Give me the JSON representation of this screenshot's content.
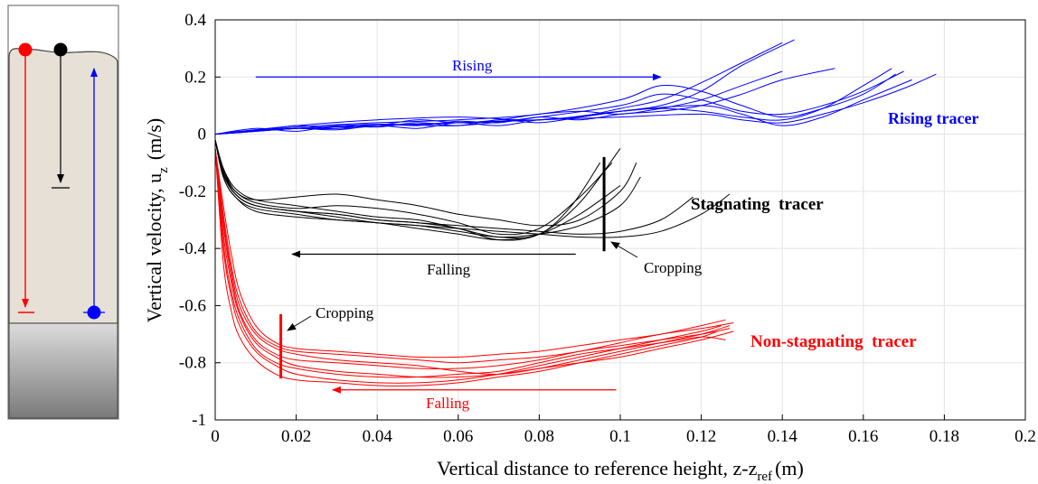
{
  "schematic": {
    "tracer_colors": [
      "#ff0000",
      "#000000",
      "#0000ff"
    ],
    "description_visible": false
  },
  "chart_data": {
    "type": "line",
    "title": "",
    "xlabel": "Vertical distance to reference height, z-z",
    "xlabel_sub": "ref",
    "xlabel_unit": "(m)",
    "ylabel": "Vertical velocity, u",
    "ylabel_sub": "z",
    "ylabel_unit": "(m/s)",
    "xlim": [
      0,
      0.2
    ],
    "ylim": [
      -1,
      0.4
    ],
    "grid": true,
    "x_ticks": [
      "0",
      "0.02",
      "0.04",
      "0.06",
      "0.08",
      "0.1",
      "0.12",
      "0.14",
      "0.16",
      "0.18",
      "0.2"
    ],
    "y_ticks": [
      "0.4",
      "0.2",
      "0",
      "-0.2",
      "-0.4",
      "-0.6",
      "-0.8",
      "-1"
    ],
    "series": [
      {
        "group": "rising",
        "color": "#0000ff",
        "x": [
          0,
          0.01,
          0.02,
          0.03,
          0.04,
          0.05,
          0.06,
          0.07,
          0.08,
          0.09,
          0.1,
          0.11,
          0.12,
          0.13,
          0.143
        ],
        "y": [
          0,
          0.01,
          0.02,
          0.015,
          0.03,
          0.02,
          0.04,
          0.03,
          0.05,
          0.06,
          0.08,
          0.1,
          0.15,
          0.24,
          0.33
        ]
      },
      {
        "group": "rising",
        "color": "#0000ff",
        "x": [
          0,
          0.01,
          0.02,
          0.03,
          0.04,
          0.05,
          0.06,
          0.07,
          0.08,
          0.09,
          0.1,
          0.11,
          0.12,
          0.13,
          0.14
        ],
        "y": [
          0,
          0.02,
          0.01,
          0.03,
          0.025,
          0.04,
          0.03,
          0.05,
          0.04,
          0.06,
          0.09,
          0.12,
          0.18,
          0.25,
          0.32
        ]
      },
      {
        "group": "rising",
        "color": "#0000ff",
        "x": [
          0,
          0.01,
          0.02,
          0.03,
          0.04,
          0.05,
          0.06,
          0.07,
          0.08,
          0.09,
          0.1,
          0.11,
          0.12,
          0.13,
          0.14,
          0.153
        ],
        "y": [
          0,
          0.015,
          0.02,
          0.02,
          0.035,
          0.03,
          0.045,
          0.04,
          0.06,
          0.05,
          0.07,
          0.08,
          0.1,
          0.14,
          0.19,
          0.23
        ]
      },
      {
        "group": "rising",
        "color": "#0000ff",
        "x": [
          0,
          0.01,
          0.02,
          0.03,
          0.04,
          0.05,
          0.06,
          0.07,
          0.08,
          0.09,
          0.1,
          0.11,
          0.12,
          0.13,
          0.14
        ],
        "y": [
          0,
          0.01,
          0.03,
          0.02,
          0.03,
          0.05,
          0.04,
          0.05,
          0.07,
          0.08,
          0.07,
          0.09,
          0.12,
          0.17,
          0.22
        ]
      },
      {
        "group": "rising",
        "color": "#0000ff",
        "x": [
          0,
          0.02,
          0.04,
          0.06,
          0.08,
          0.09,
          0.1,
          0.11,
          0.12,
          0.13,
          0.14,
          0.15,
          0.16,
          0.167
        ],
        "y": [
          0,
          0.02,
          0.03,
          0.04,
          0.05,
          0.06,
          0.08,
          0.09,
          0.08,
          0.06,
          0.05,
          0.09,
          0.17,
          0.23
        ]
      },
      {
        "group": "rising",
        "color": "#0000ff",
        "x": [
          0,
          0.02,
          0.04,
          0.06,
          0.08,
          0.1,
          0.11,
          0.12,
          0.13,
          0.14,
          0.15,
          0.16,
          0.17
        ],
        "y": [
          0,
          0.02,
          0.035,
          0.03,
          0.06,
          0.1,
          0.14,
          0.12,
          0.08,
          0.07,
          0.1,
          0.15,
          0.22
        ]
      },
      {
        "group": "rising",
        "color": "#0000ff",
        "x": [
          0,
          0.02,
          0.04,
          0.06,
          0.08,
          0.1,
          0.11,
          0.12,
          0.13,
          0.14,
          0.15,
          0.16,
          0.168
        ],
        "y": [
          0,
          0.025,
          0.04,
          0.05,
          0.07,
          0.12,
          0.17,
          0.15,
          0.1,
          0.06,
          0.09,
          0.14,
          0.21
        ]
      },
      {
        "group": "rising",
        "color": "#0000ff",
        "x": [
          0,
          0.02,
          0.04,
          0.06,
          0.08,
          0.1,
          0.12,
          0.13,
          0.14,
          0.15,
          0.16,
          0.17,
          0.178
        ],
        "y": [
          0,
          0.02,
          0.03,
          0.04,
          0.05,
          0.06,
          0.07,
          0.05,
          0.04,
          0.07,
          0.11,
          0.16,
          0.21
        ]
      },
      {
        "group": "rising",
        "color": "#0000ff",
        "x": [
          0,
          0.02,
          0.04,
          0.06,
          0.08,
          0.1,
          0.12,
          0.13,
          0.14,
          0.15,
          0.16,
          0.172
        ],
        "y": [
          0,
          0.03,
          0.05,
          0.06,
          0.05,
          0.08,
          0.1,
          0.07,
          0.03,
          0.06,
          0.12,
          0.19
        ]
      },
      {
        "group": "stagnating",
        "color": "#000000",
        "x": [
          0,
          0.002,
          0.005,
          0.01,
          0.02,
          0.03,
          0.04,
          0.05,
          0.06,
          0.07,
          0.08,
          0.088,
          0.095
        ],
        "y": [
          -0.02,
          -0.12,
          -0.19,
          -0.23,
          -0.25,
          -0.27,
          -0.29,
          -0.3,
          -0.33,
          -0.36,
          -0.35,
          -0.25,
          -0.1
        ]
      },
      {
        "group": "stagnating",
        "color": "#000000",
        "x": [
          0,
          0.002,
          0.005,
          0.01,
          0.02,
          0.03,
          0.04,
          0.05,
          0.06,
          0.07,
          0.08,
          0.09,
          0.1
        ],
        "y": [
          -0.02,
          -0.14,
          -0.21,
          -0.25,
          -0.27,
          -0.28,
          -0.3,
          -0.31,
          -0.33,
          -0.37,
          -0.35,
          -0.24,
          -0.05
        ]
      },
      {
        "group": "stagnating",
        "color": "#000000",
        "x": [
          0,
          0.002,
          0.005,
          0.01,
          0.02,
          0.03,
          0.04,
          0.05,
          0.06,
          0.07,
          0.08,
          0.09,
          0.098
        ],
        "y": [
          -0.02,
          -0.13,
          -0.2,
          -0.24,
          -0.26,
          -0.25,
          -0.26,
          -0.28,
          -0.31,
          -0.35,
          -0.33,
          -0.22,
          -0.1
        ]
      },
      {
        "group": "stagnating",
        "color": "#000000",
        "x": [
          0,
          0.002,
          0.005,
          0.01,
          0.02,
          0.03,
          0.04,
          0.05,
          0.06,
          0.07,
          0.08,
          0.09,
          0.1
        ],
        "y": [
          -0.02,
          -0.15,
          -0.22,
          -0.26,
          -0.28,
          -0.3,
          -0.31,
          -0.33,
          -0.35,
          -0.37,
          -0.35,
          -0.28,
          -0.18
        ]
      },
      {
        "group": "stagnating",
        "color": "#000000",
        "x": [
          0,
          0.002,
          0.005,
          0.01,
          0.02,
          0.03,
          0.04,
          0.05,
          0.06,
          0.07,
          0.08,
          0.09,
          0.1,
          0.104
        ],
        "y": [
          -0.02,
          -0.12,
          -0.2,
          -0.23,
          -0.22,
          -0.21,
          -0.23,
          -0.25,
          -0.28,
          -0.3,
          -0.32,
          -0.3,
          -0.2,
          -0.1
        ]
      },
      {
        "group": "stagnating",
        "color": "#000000",
        "x": [
          0,
          0.002,
          0.005,
          0.01,
          0.02,
          0.03,
          0.04,
          0.05,
          0.06,
          0.07,
          0.08,
          0.09,
          0.1,
          0.11,
          0.118
        ],
        "y": [
          -0.02,
          -0.14,
          -0.21,
          -0.25,
          -0.27,
          -0.28,
          -0.3,
          -0.31,
          -0.32,
          -0.33,
          -0.34,
          -0.35,
          -0.34,
          -0.3,
          -0.22
        ]
      },
      {
        "group": "stagnating",
        "color": "#000000",
        "x": [
          0,
          0.002,
          0.005,
          0.01,
          0.02,
          0.03,
          0.04,
          0.05,
          0.06,
          0.07,
          0.08,
          0.09,
          0.1,
          0.11,
          0.12,
          0.127
        ],
        "y": [
          -0.02,
          -0.15,
          -0.22,
          -0.27,
          -0.29,
          -0.3,
          -0.31,
          -0.32,
          -0.33,
          -0.34,
          -0.35,
          -0.36,
          -0.36,
          -0.34,
          -0.28,
          -0.21
        ]
      },
      {
        "group": "stagnating",
        "color": "#000000",
        "x": [
          0,
          0.002,
          0.005,
          0.01,
          0.02,
          0.03,
          0.04,
          0.05,
          0.06,
          0.07,
          0.08,
          0.09,
          0.1,
          0.105
        ],
        "y": [
          -0.02,
          -0.13,
          -0.21,
          -0.25,
          -0.27,
          -0.29,
          -0.31,
          -0.32,
          -0.34,
          -0.36,
          -0.35,
          -0.32,
          -0.25,
          -0.15
        ]
      },
      {
        "group": "non-stagnating",
        "color": "#ff0000",
        "x": [
          0,
          0.002,
          0.004,
          0.006,
          0.01,
          0.015,
          0.02,
          0.03,
          0.04,
          0.05,
          0.06,
          0.07,
          0.08,
          0.09,
          0.1,
          0.11,
          0.12,
          0.127
        ],
        "y": [
          -0.05,
          -0.3,
          -0.48,
          -0.6,
          -0.7,
          -0.75,
          -0.77,
          -0.79,
          -0.8,
          -0.81,
          -0.83,
          -0.84,
          -0.82,
          -0.79,
          -0.76,
          -0.73,
          -0.7,
          -0.67
        ]
      },
      {
        "group": "non-stagnating",
        "color": "#ff0000",
        "x": [
          0,
          0.002,
          0.004,
          0.006,
          0.01,
          0.015,
          0.02,
          0.03,
          0.04,
          0.05,
          0.06,
          0.07,
          0.08,
          0.09,
          0.1,
          0.11,
          0.12,
          0.128
        ],
        "y": [
          -0.05,
          -0.35,
          -0.52,
          -0.63,
          -0.73,
          -0.78,
          -0.81,
          -0.83,
          -0.84,
          -0.85,
          -0.85,
          -0.84,
          -0.82,
          -0.8,
          -0.78,
          -0.75,
          -0.72,
          -0.69
        ]
      },
      {
        "group": "non-stagnating",
        "color": "#ff0000",
        "x": [
          0,
          0.002,
          0.004,
          0.006,
          0.01,
          0.015,
          0.02,
          0.03,
          0.04,
          0.05,
          0.06,
          0.07,
          0.08,
          0.09,
          0.1,
          0.11,
          0.12,
          0.126
        ],
        "y": [
          -0.05,
          -0.25,
          -0.42,
          -0.55,
          -0.67,
          -0.73,
          -0.75,
          -0.76,
          -0.77,
          -0.78,
          -0.78,
          -0.77,
          -0.76,
          -0.74,
          -0.72,
          -0.7,
          -0.67,
          -0.65
        ]
      },
      {
        "group": "non-stagnating",
        "color": "#ff0000",
        "x": [
          0,
          0.002,
          0.004,
          0.006,
          0.01,
          0.015,
          0.02,
          0.03,
          0.04,
          0.05,
          0.06,
          0.07,
          0.08,
          0.09,
          0.1,
          0.11,
          0.12,
          0.125
        ],
        "y": [
          -0.05,
          -0.4,
          -0.57,
          -0.67,
          -0.76,
          -0.81,
          -0.84,
          -0.86,
          -0.87,
          -0.87,
          -0.86,
          -0.84,
          -0.81,
          -0.78,
          -0.75,
          -0.72,
          -0.69,
          -0.67
        ]
      },
      {
        "group": "non-stagnating",
        "color": "#ff0000",
        "x": [
          0,
          0.002,
          0.004,
          0.006,
          0.01,
          0.015,
          0.02,
          0.03,
          0.04,
          0.05,
          0.06,
          0.07,
          0.08,
          0.09,
          0.1,
          0.11,
          0.12,
          0.124
        ],
        "y": [
          -0.05,
          -0.45,
          -0.62,
          -0.71,
          -0.79,
          -0.84,
          -0.86,
          -0.87,
          -0.88,
          -0.88,
          -0.87,
          -0.85,
          -0.83,
          -0.8,
          -0.77,
          -0.74,
          -0.71,
          -0.69
        ]
      },
      {
        "group": "non-stagnating",
        "color": "#ff0000",
        "x": [
          0,
          0.002,
          0.004,
          0.006,
          0.01,
          0.015,
          0.02,
          0.03,
          0.04,
          0.05,
          0.06,
          0.07,
          0.08,
          0.09,
          0.1,
          0.11,
          0.12,
          0.127
        ],
        "y": [
          -0.05,
          -0.32,
          -0.5,
          -0.62,
          -0.72,
          -0.77,
          -0.79,
          -0.8,
          -0.81,
          -0.82,
          -0.82,
          -0.81,
          -0.79,
          -0.76,
          -0.74,
          -0.72,
          -0.7,
          -0.68
        ]
      },
      {
        "group": "non-stagnating",
        "color": "#ff0000",
        "x": [
          0,
          0.002,
          0.004,
          0.006,
          0.01,
          0.015,
          0.02,
          0.03,
          0.04,
          0.05,
          0.06,
          0.07,
          0.08,
          0.09,
          0.1,
          0.11,
          0.12,
          0.126
        ],
        "y": [
          -0.05,
          -0.38,
          -0.55,
          -0.65,
          -0.75,
          -0.8,
          -0.82,
          -0.84,
          -0.85,
          -0.85,
          -0.84,
          -0.83,
          -0.8,
          -0.77,
          -0.75,
          -0.73,
          -0.71,
          -0.72
        ]
      },
      {
        "group": "non-stagnating",
        "color": "#ff0000",
        "x": [
          0,
          0.002,
          0.004,
          0.006,
          0.01,
          0.015,
          0.02,
          0.03,
          0.04,
          0.05,
          0.06,
          0.07,
          0.08,
          0.09,
          0.1,
          0.11,
          0.12,
          0.128
        ],
        "y": [
          -0.05,
          -0.28,
          -0.46,
          -0.58,
          -0.69,
          -0.74,
          -0.76,
          -0.77,
          -0.78,
          -0.79,
          -0.8,
          -0.79,
          -0.78,
          -0.76,
          -0.73,
          -0.7,
          -0.68,
          -0.66
        ]
      }
    ],
    "annotations": {
      "rising_arrow": {
        "label": "Rising",
        "color": "#0000ff",
        "x_from": 0.01,
        "x_to": 0.11,
        "y": 0.2
      },
      "falling_black_arrow": {
        "label": "Falling",
        "color": "#000000",
        "x_from": 0.089,
        "x_to": 0.019,
        "y": -0.42
      },
      "falling_red_arrow": {
        "label": "Falling",
        "color": "#ff0000",
        "x_from": 0.099,
        "x_to": 0.029,
        "y": -0.895
      },
      "crop_black": {
        "label": "Cropping",
        "x": 0.096,
        "y_from": -0.08,
        "y_to": -0.41
      },
      "crop_red": {
        "label": "Cropping",
        "x": 0.0162,
        "y_from": -0.63,
        "y_to": -0.855
      },
      "group_labels": [
        {
          "label": "Rising tracer",
          "color": "#0000ff"
        },
        {
          "label": "Stagnating  tracer",
          "color": "#000000"
        },
        {
          "label": "Non-stagnating  tracer",
          "color": "#ff0000"
        }
      ]
    }
  }
}
